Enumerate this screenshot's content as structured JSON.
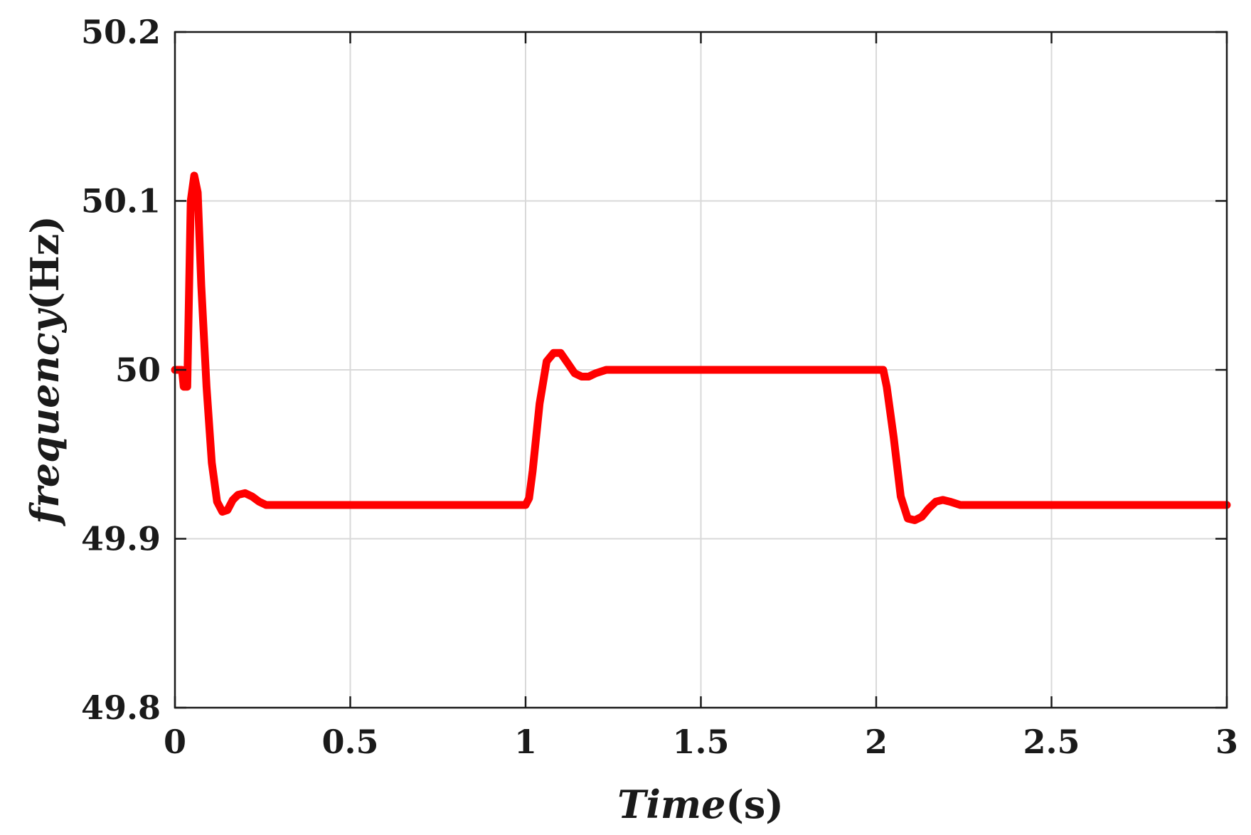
{
  "chart_data": {
    "type": "line",
    "title": "",
    "xlabel": {
      "italic": "Time",
      "unit": "(s)"
    },
    "ylabel": {
      "italic": "frequency",
      "unit": "(Hz)"
    },
    "xlim": [
      0,
      3
    ],
    "ylim": [
      49.8,
      50.2
    ],
    "xticks": [
      0,
      0.5,
      1,
      1.5,
      2,
      2.5,
      3
    ],
    "xtick_labels": [
      "0",
      "0.5",
      "1",
      "1.5",
      "2",
      "2.5",
      "3"
    ],
    "yticks": [
      49.8,
      49.9,
      50,
      50.1,
      50.2
    ],
    "ytick_labels": [
      "49.8",
      "49.9",
      "50",
      "50.1",
      "50.2"
    ],
    "grid": true,
    "series": [
      {
        "color": "#ff0000",
        "x": [
          0,
          0.02,
          0.025,
          0.035,
          0.045,
          0.055,
          0.065,
          0.075,
          0.09,
          0.105,
          0.12,
          0.135,
          0.15,
          0.165,
          0.18,
          0.2,
          0.22,
          0.24,
          0.26,
          0.28,
          0.3,
          0.35,
          0.4,
          0.5,
          0.6,
          0.7,
          0.8,
          0.9,
          0.98,
          1.0,
          1.01,
          1.02,
          1.04,
          1.06,
          1.08,
          1.1,
          1.12,
          1.14,
          1.16,
          1.18,
          1.2,
          1.23,
          1.26,
          1.3,
          1.4,
          1.5,
          1.6,
          1.7,
          1.8,
          1.9,
          2.0,
          2.02,
          2.03,
          2.05,
          2.07,
          2.09,
          2.11,
          2.13,
          2.15,
          2.17,
          2.19,
          2.21,
          2.24,
          2.27,
          2.3,
          2.4,
          2.5,
          2.6,
          2.7,
          2.8,
          2.9,
          3.0
        ],
        "values": [
          50.0,
          50.0,
          49.99,
          49.99,
          50.1,
          50.115,
          50.105,
          50.05,
          49.99,
          49.945,
          49.922,
          49.916,
          49.917,
          49.923,
          49.926,
          49.927,
          49.925,
          49.922,
          49.92,
          49.92,
          49.92,
          49.92,
          49.92,
          49.92,
          49.92,
          49.92,
          49.92,
          49.92,
          49.92,
          49.92,
          49.924,
          49.94,
          49.98,
          50.005,
          50.01,
          50.01,
          50.004,
          49.998,
          49.996,
          49.996,
          49.998,
          50.0,
          50.0,
          50.0,
          50.0,
          50.0,
          50.0,
          50.0,
          50.0,
          50.0,
          50.0,
          50.0,
          49.99,
          49.96,
          49.925,
          49.912,
          49.911,
          49.913,
          49.918,
          49.922,
          49.923,
          49.922,
          49.92,
          49.92,
          49.92,
          49.92,
          49.92,
          49.92,
          49.92,
          49.92,
          49.92,
          49.92
        ]
      }
    ]
  }
}
